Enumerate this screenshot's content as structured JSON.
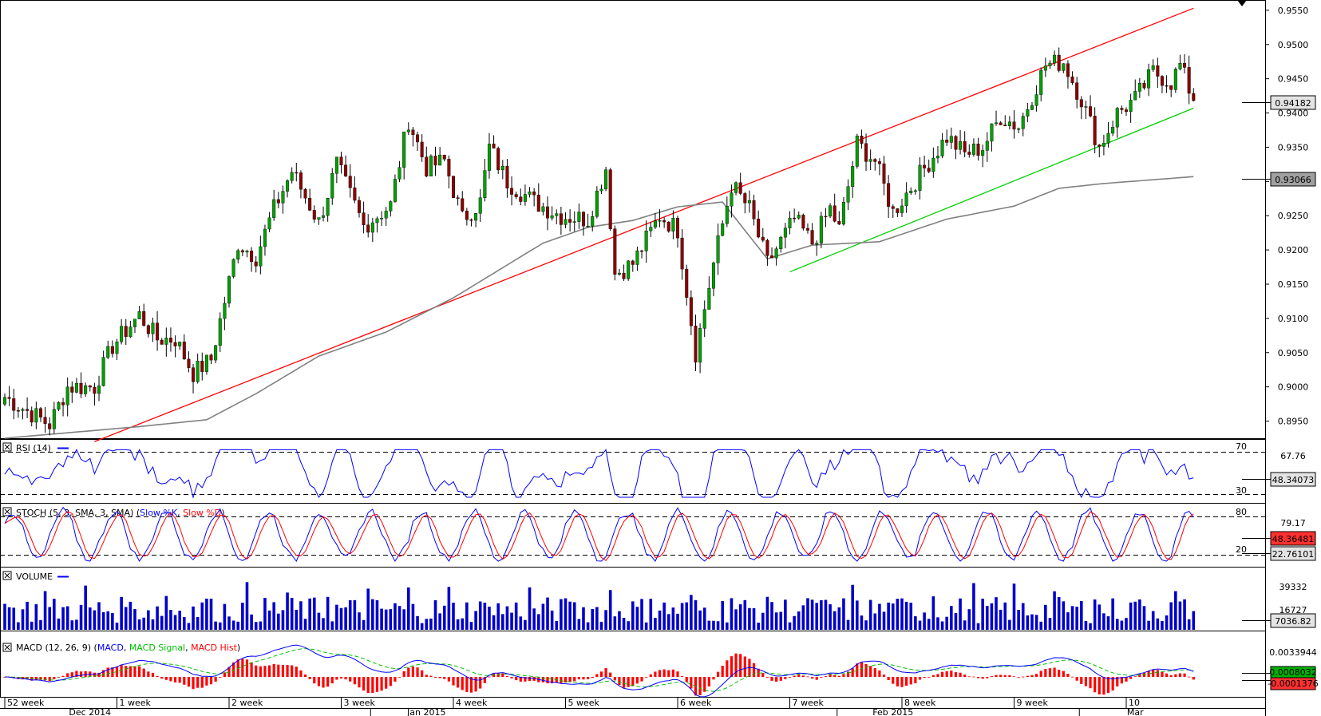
{
  "chart_data": {
    "type": "candlestick",
    "price_axis": {
      "ticks": [
        "0.9550",
        "0.9500",
        "0.9450",
        "0.9400",
        "0.9350",
        "0.9300",
        "0.9250",
        "0.9200",
        "0.9150",
        "0.9100",
        "0.9050",
        "0.9000",
        "0.8950"
      ],
      "ylim": [
        0.8925,
        0.9565
      ],
      "last_price": "0.94182",
      "ma_value": "0.93066"
    },
    "price_series": {
      "anchors": [
        [
          0,
          0.8985
        ],
        [
          10,
          0.8945
        ],
        [
          14,
          0.9
        ],
        [
          20,
          0.9
        ],
        [
          24,
          0.906
        ],
        [
          30,
          0.9105
        ],
        [
          34,
          0.907
        ],
        [
          38,
          0.907
        ],
        [
          42,
          0.902
        ],
        [
          46,
          0.904
        ],
        [
          52,
          0.921
        ],
        [
          56,
          0.919
        ],
        [
          60,
          0.926
        ],
        [
          64,
          0.9315
        ],
        [
          70,
          0.924
        ],
        [
          74,
          0.9325
        ],
        [
          80,
          0.9235
        ],
        [
          86,
          0.9265
        ],
        [
          90,
          0.939
        ],
        [
          94,
          0.932
        ],
        [
          98,
          0.933
        ],
        [
          102,
          0.9245
        ],
        [
          106,
          0.927
        ],
        [
          108,
          0.935
        ],
        [
          112,
          0.93
        ],
        [
          118,
          0.927
        ],
        [
          124,
          0.925
        ],
        [
          130,
          0.9245
        ],
        [
          134,
          0.932
        ],
        [
          136,
          0.9165
        ],
        [
          140,
          0.918
        ],
        [
          146,
          0.925
        ],
        [
          150,
          0.923
        ],
        [
          154,
          0.905
        ],
        [
          158,
          0.918
        ],
        [
          162,
          0.9295
        ],
        [
          166,
          0.926
        ],
        [
          170,
          0.918
        ],
        [
          176,
          0.9245
        ],
        [
          180,
          0.921
        ],
        [
          184,
          0.926
        ],
        [
          186,
          0.923
        ],
        [
          190,
          0.9355
        ],
        [
          194,
          0.933
        ],
        [
          198,
          0.9255
        ],
        [
          204,
          0.931
        ],
        [
          210,
          0.9365
        ],
        [
          214,
          0.934
        ],
        [
          218,
          0.935
        ],
        [
          222,
          0.9395
        ],
        [
          226,
          0.938
        ],
        [
          232,
          0.947
        ],
        [
          236,
          0.9475
        ],
        [
          240,
          0.942
        ],
        [
          244,
          0.935
        ],
        [
          248,
          0.94
        ],
        [
          252,
          0.942
        ],
        [
          256,
          0.946
        ],
        [
          260,
          0.9445
        ],
        [
          262,
          0.947
        ],
        [
          265,
          0.9418
        ]
      ],
      "count": 266,
      "seed": 7
    },
    "ma200": [
      [
        0,
        0.8925
      ],
      [
        30,
        0.8942
      ],
      [
        45,
        0.8952
      ],
      [
        56,
        0.899
      ],
      [
        70,
        0.9045
      ],
      [
        85,
        0.908
      ],
      [
        100,
        0.913
      ],
      [
        110,
        0.917
      ],
      [
        120,
        0.921
      ],
      [
        130,
        0.9233
      ],
      [
        140,
        0.9243
      ],
      [
        150,
        0.9263
      ],
      [
        160,
        0.927
      ],
      [
        170,
        0.9187
      ],
      [
        180,
        0.9207
      ],
      [
        195,
        0.9212
      ],
      [
        210,
        0.9245
      ],
      [
        225,
        0.9264
      ],
      [
        235,
        0.929
      ],
      [
        245,
        0.9297
      ],
      [
        255,
        0.9302
      ],
      [
        265,
        0.9307
      ]
    ],
    "trendlines": [
      {
        "name": "upper",
        "color": "#ff0000",
        "p1": [
          20,
          0.892
        ],
        "p2": [
          265,
          0.9553
        ]
      },
      {
        "name": "lower",
        "color": "#00d000",
        "p1": [
          175,
          0.9168
        ],
        "p2": [
          265,
          0.9407
        ]
      }
    ],
    "rsi": {
      "title": "RSI (14)",
      "levels": [
        "70",
        "67.76",
        "30"
      ],
      "last": "48.34073"
    },
    "stoch": {
      "title_prefix": "STOCH (5, 3, SMA, 3, SMA) (",
      "series": [
        {
          "name": "Slow %K",
          "color": "#0000ff"
        },
        {
          "name": "Slow %D",
          "color": "#ff0000"
        }
      ],
      "levels": [
        "80",
        "79.17",
        "20"
      ],
      "last_d": "48.36481",
      "last_k": "22.76101"
    },
    "volume": {
      "title": "VOLUME",
      "ticks": [
        "39332",
        "16727"
      ],
      "last": "7036.82"
    },
    "macd": {
      "title_prefix": "MACD (12, 26, 9) (",
      "series": [
        {
          "name": "MACD",
          "color": "#0000ff"
        },
        {
          "name": "MACD Signal",
          "color": "#00c000"
        },
        {
          "name": "MACD Hist",
          "color": "#ff0000"
        }
      ],
      "ticks": [
        "0.0033944"
      ],
      "last_signal": "0.0008032",
      "last_hist": "-0.0001376"
    },
    "x_axis": {
      "weeks": [
        {
          "label": "52 week",
          "i": 0
        },
        {
          "label": "1 week",
          "i": 25
        },
        {
          "label": "2 week",
          "i": 50
        },
        {
          "label": "3 week",
          "i": 75
        },
        {
          "label": "4 week",
          "i": 100
        },
        {
          "label": "5 week",
          "i": 125
        },
        {
          "label": "6 week",
          "i": 150
        },
        {
          "label": "7 week",
          "i": 175
        },
        {
          "label": "8 week",
          "i": 200
        },
        {
          "label": "9 week",
          "i": 225
        },
        {
          "label": "10",
          "i": 250
        }
      ],
      "months": [
        {
          "label": "Dec 2014",
          "i": 19
        },
        {
          "label": "Jan 2015",
          "i": 94
        },
        {
          "label": "Feb 2015",
          "i": 198
        },
        {
          "label": "Mar",
          "i": 252
        }
      ]
    }
  }
}
